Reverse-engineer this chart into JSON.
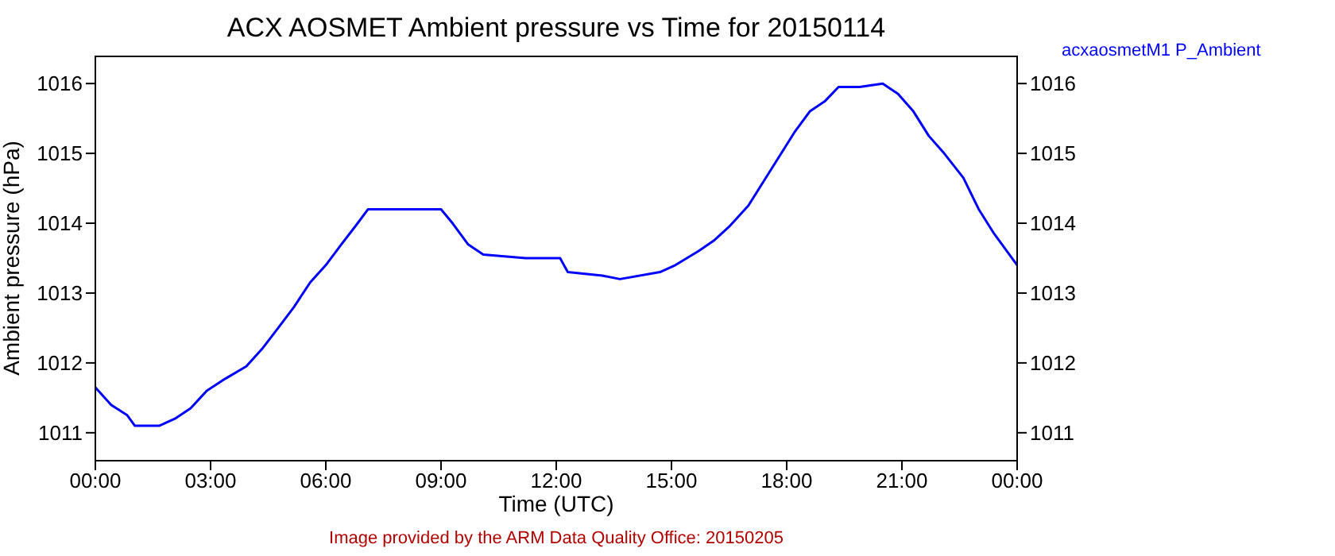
{
  "chart_data": {
    "type": "line",
    "title": "ACX AOSMET Ambient pressure vs Time for 20150114",
    "xlabel": "Time (UTC)",
    "ylabel": "Ambient pressure (hPa)",
    "annotations": [
      "Image provided by the ARM Data Quality Office: 20150205"
    ],
    "x": [
      0,
      0.41,
      0.83,
      1.03,
      1.66,
      2.07,
      2.48,
      2.9,
      3.31,
      3.93,
      4.34,
      4.76,
      5.17,
      5.59,
      6,
      6.41,
      6.83,
      7.1,
      9,
      9.3,
      9.7,
      10.1,
      11.2,
      12.1,
      12.3,
      13.2,
      13.66,
      14.7,
      15.1,
      15.7,
      16.1,
      16.5,
      17,
      17.4,
      17.8,
      18.2,
      18.6,
      19,
      19.35,
      19.9,
      20.5,
      20.9,
      21.3,
      21.7,
      22.1,
      22.6,
      23,
      23.4,
      23.8,
      24
    ],
    "series": [
      {
        "name": "acxaosmetM1 P_Ambient",
        "color": "#0000ff",
        "values": [
          1011.65,
          1011.4,
          1011.25,
          1011.1,
          1011.1,
          1011.2,
          1011.35,
          1011.6,
          1011.75,
          1011.95,
          1012.2,
          1012.5,
          1012.8,
          1013.15,
          1013.4,
          1013.7,
          1014.0,
          1014.2,
          1014.2,
          1014.0,
          1013.7,
          1013.55,
          1013.5,
          1013.5,
          1013.3,
          1013.25,
          1013.2,
          1013.3,
          1013.4,
          1013.6,
          1013.75,
          1013.95,
          1014.25,
          1014.6,
          1014.95,
          1015.3,
          1015.6,
          1015.75,
          1015.95,
          1015.95,
          1016.0,
          1015.85,
          1015.6,
          1015.25,
          1015.0,
          1014.65,
          1014.2,
          1013.85,
          1013.55,
          1013.4
        ]
      }
    ],
    "xlim": [
      0,
      24
    ],
    "xticks": [
      {
        "value": 0,
        "label": "00:00"
      },
      {
        "value": 3,
        "label": "03:00"
      },
      {
        "value": 6,
        "label": "06:00"
      },
      {
        "value": 9,
        "label": "09:00"
      },
      {
        "value": 12,
        "label": "12:00"
      },
      {
        "value": 15,
        "label": "15:00"
      },
      {
        "value": 18,
        "label": "18:00"
      },
      {
        "value": 21,
        "label": "21:00"
      },
      {
        "value": 24,
        "label": "00:00"
      }
    ],
    "ylim": [
      1010.6,
      1016.4
    ],
    "yticks": [
      1011,
      1012,
      1013,
      1014,
      1015,
      1016
    ],
    "y2lim": [
      1010.6,
      1016.4
    ],
    "y2ticks": [
      1011,
      1012,
      1013,
      1014,
      1015,
      1016
    ],
    "grid": false,
    "legend": "top right",
    "marker": "none",
    "line_style": "solid"
  }
}
